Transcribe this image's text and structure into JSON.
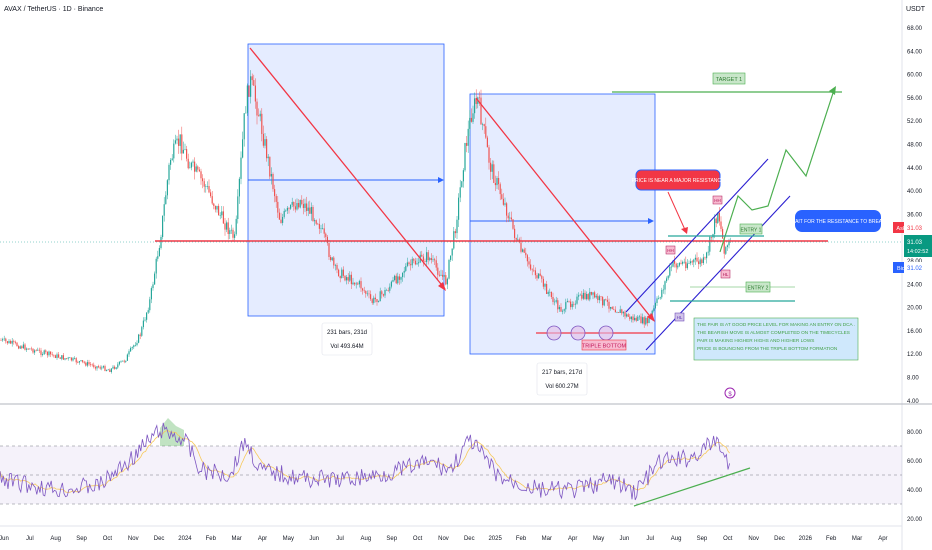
{
  "header": {
    "symbol_title": "AVAX / TetherUS · 1D · Binance",
    "unit": "USDT"
  },
  "price_axis": {
    "ticks": [
      "68.00",
      "64.00",
      "60.00",
      "56.00",
      "52.00",
      "48.00",
      "44.00",
      "40.00",
      "36.00",
      "32.00",
      "28.00",
      "24.00",
      "20.00",
      "16.00",
      "12.00",
      "8.00",
      "4.00"
    ]
  },
  "rsi_axis": {
    "ticks": [
      "80.00",
      "60.00",
      "40.00",
      "20.00"
    ]
  },
  "time_axis": {
    "ticks": [
      "Jun",
      "Jul",
      "Aug",
      "Sep",
      "Oct",
      "Nov",
      "Dec",
      "2024",
      "Feb",
      "Mar",
      "Apr",
      "May",
      "Jun",
      "Jul",
      "Aug",
      "Sep",
      "Oct",
      "Nov",
      "Dec",
      "2025",
      "Feb",
      "Mar",
      "Apr",
      "May",
      "Jun",
      "Jul",
      "Aug",
      "Sep",
      "Oct",
      "Nov",
      "Dec",
      "2026",
      "Feb",
      "Mar",
      "Apr"
    ]
  },
  "quotes": {
    "ask_label": "Ask",
    "ask_value": "31.03",
    "last_value": "31.03",
    "last_sub": "31.00",
    "countdown": "14:02:52",
    "bid_label": "Bid",
    "bid_value": "31.02"
  },
  "annotations": {
    "range1_bars": "231 bars, 231d",
    "range1_vol": "Vol 493.64M",
    "range2_bars": "217 bars, 217d",
    "range2_vol": "Vol 600.27M",
    "target": "TARGET 1",
    "resistance_note": "PRICE IS NEAR A MAJOR RESISTANCE",
    "wait_note": "WAIT FOR THE RESISTANCE TO BREAK",
    "entry1": "ENTRY 1",
    "entry2": "ENTRY 2",
    "triple_bottom": "TRIPLE BOTTOM",
    "hh": "HH",
    "hl": "HL",
    "note_lines": [
      "THE PAIR IS AT GOOD PRICE LEVEL FOR MAKING AN ENTRY ON DCA .",
      "THE BEARISH MOVE IS ALMOST COMPLETED ON THE TIMECYCLES",
      "PAIR IS MAKING HIGHER HIGHS AND HIGHER LOWS",
      "PRICE IS BOUNCING FROM THE TRIPLE BOTTOM FORMATION"
    ]
  },
  "colors": {
    "up": "#26a69a",
    "down": "#ef5350",
    "rsi": "#7e57c2",
    "rsi_ma": "#f7c95c",
    "resistance": "#f23645",
    "accent_blue": "#2962ff",
    "green": "#4caf50"
  }
}
